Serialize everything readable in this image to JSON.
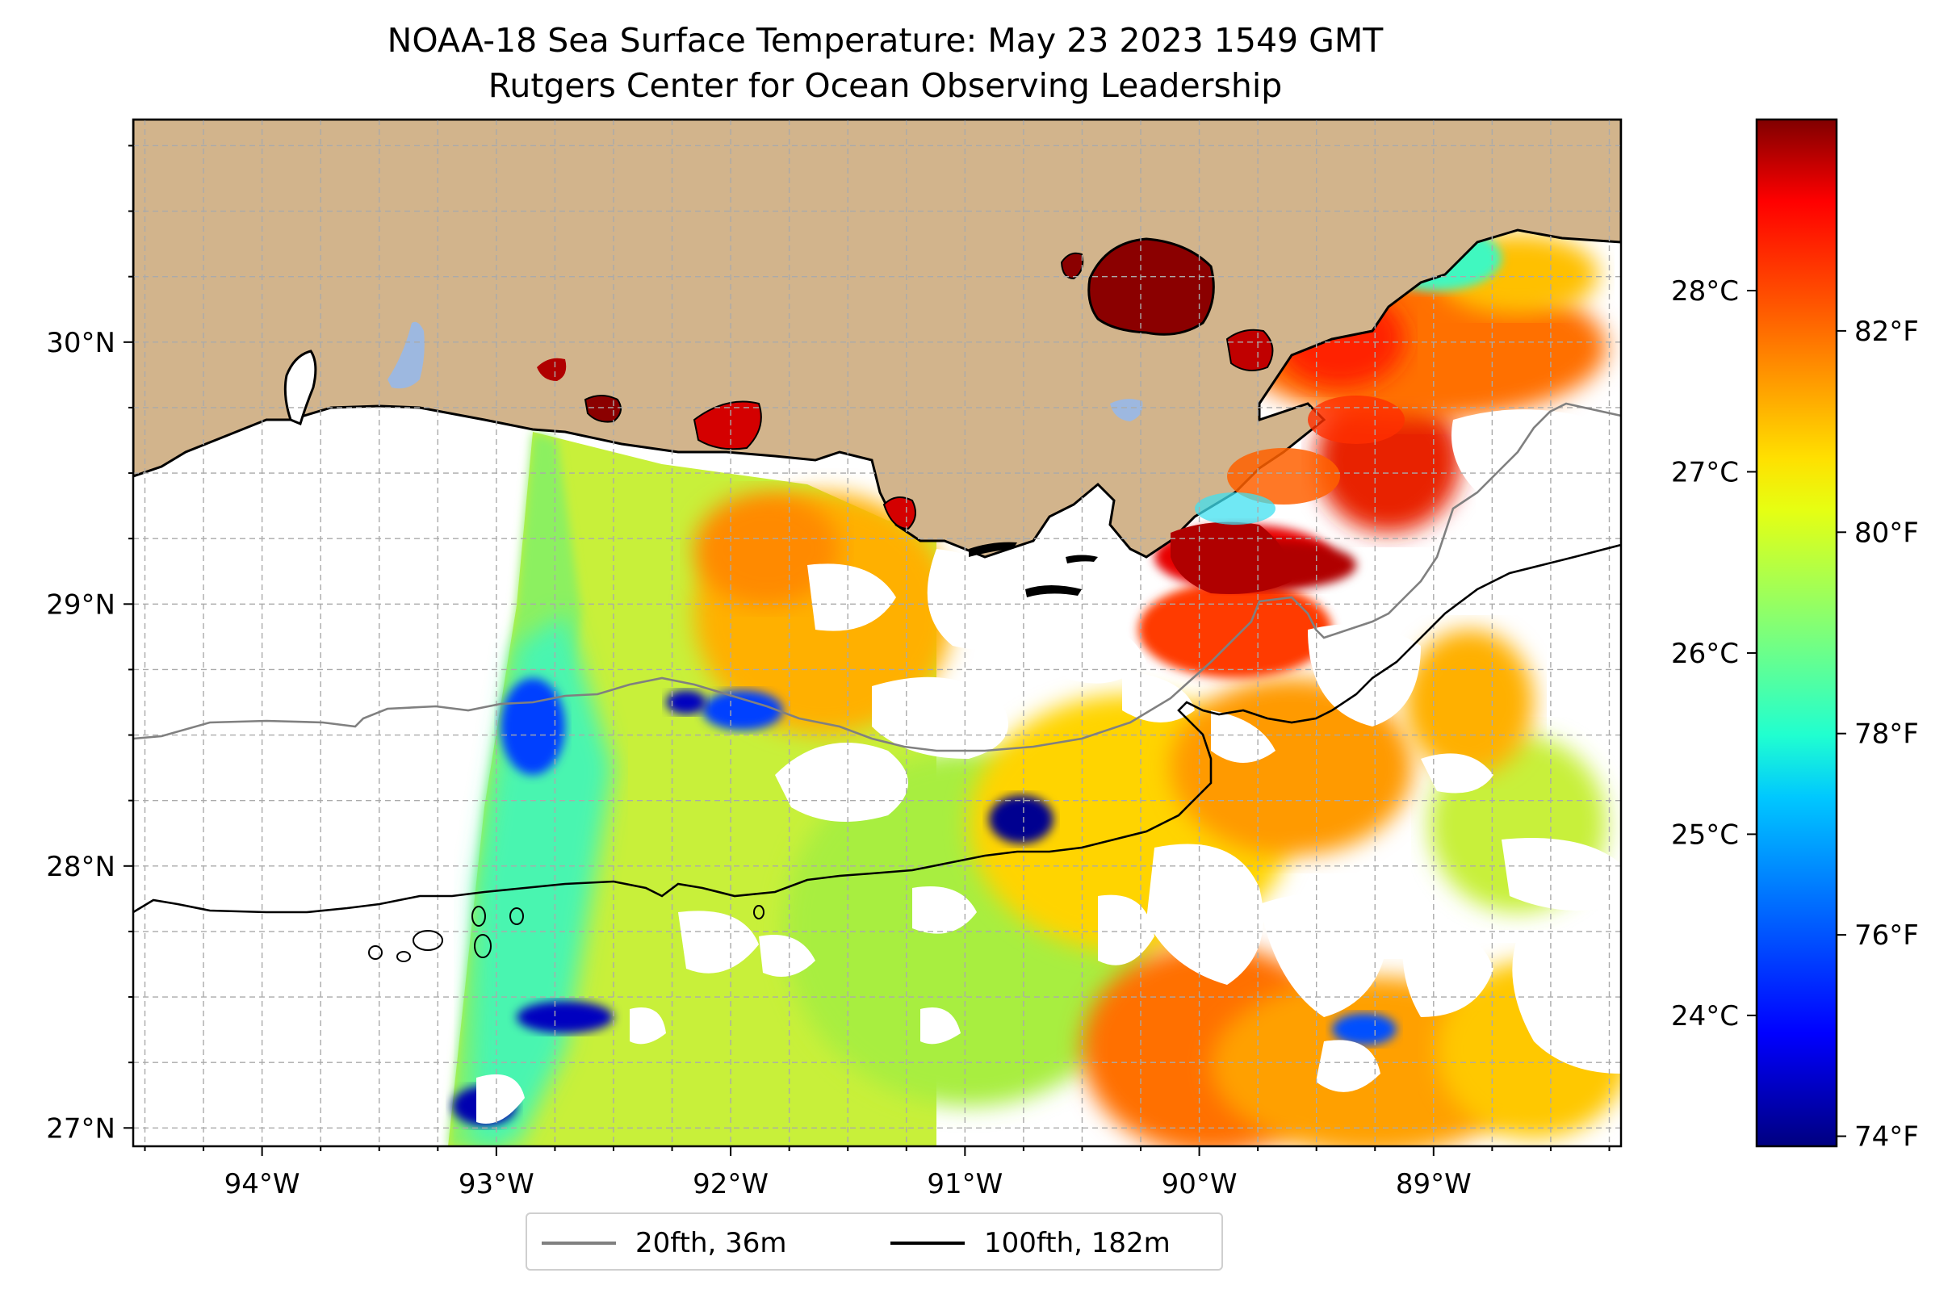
{
  "title": {
    "line1": "NOAA-18 Sea Surface Temperature: May 23 2023 1549 GMT",
    "line2": "Rutgers Center for Ocean Observing Leadership"
  },
  "map": {
    "lon_range": [
      -94.55,
      -88.2
    ],
    "lat_range": [
      26.93,
      30.85
    ],
    "x_ticks": [
      "94°W",
      "93°W",
      "92°W",
      "91°W",
      "90°W",
      "89°W"
    ],
    "y_ticks": [
      "27°N",
      "28°N",
      "29°N",
      "30°N"
    ],
    "grid": "dashed light gray",
    "land_color": "#d2b48c",
    "lake_color": "#9db8e0",
    "missing_data_color": "#ffffff"
  },
  "legend": {
    "items": [
      {
        "label": "20fth, 36m",
        "color": "#808080"
      },
      {
        "label": "100fth, 182m",
        "color": "#000000"
      }
    ],
    "placement": "bottom-center"
  },
  "colorbar": {
    "colormap": "jet",
    "celsius_ticks": [
      "28°C",
      "27°C",
      "26°C",
      "25°C",
      "24°C"
    ],
    "fahrenheit_ticks": [
      "82°F",
      "80°F",
      "78°F",
      "76°F",
      "74°F"
    ],
    "range_f": [
      73.9,
      84.1
    ]
  }
}
